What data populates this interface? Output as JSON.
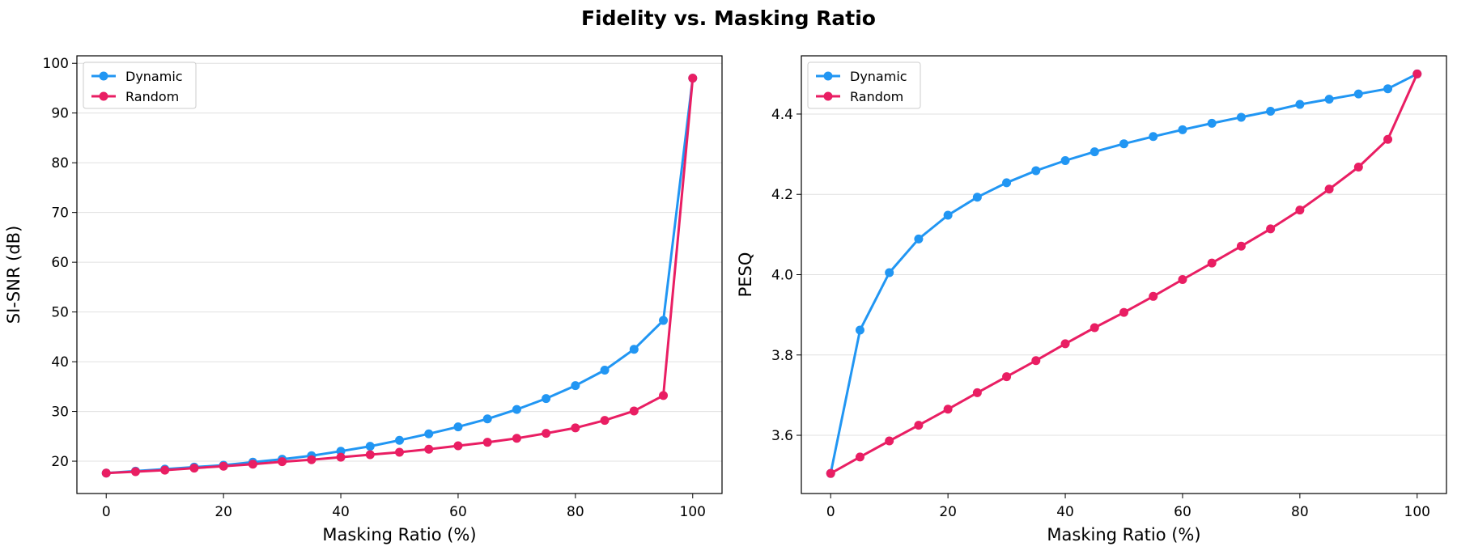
{
  "title": "Fidelity vs. Masking Ratio",
  "colors": {
    "dynamic": "#2196F3",
    "random": "#E91E63",
    "grid": "#e0e0e0"
  },
  "chart_data": [
    {
      "type": "line",
      "xlabel": "Masking Ratio (%)",
      "ylabel": "SI-SNR (dB)",
      "xlim": [
        -5,
        105
      ],
      "ylim": [
        13.5,
        101.5
      ],
      "xticks": [
        0,
        20,
        40,
        60,
        80,
        100
      ],
      "yticks": [
        20,
        30,
        40,
        50,
        60,
        70,
        80,
        90,
        100
      ],
      "grid": "horizontal",
      "legend": "top-left",
      "x": [
        0,
        5,
        10,
        15,
        20,
        25,
        30,
        35,
        40,
        45,
        50,
        55,
        60,
        65,
        70,
        75,
        80,
        85,
        90,
        95,
        100
      ],
      "series": [
        {
          "name": "Dynamic",
          "color": "#2196F3",
          "values": [
            17.6,
            18.0,
            18.4,
            18.8,
            19.2,
            19.8,
            20.4,
            21.1,
            22.0,
            23.0,
            24.2,
            25.5,
            26.9,
            28.5,
            30.4,
            32.6,
            35.2,
            38.3,
            42.5,
            48.3,
            97.0
          ]
        },
        {
          "name": "Random",
          "color": "#E91E63",
          "values": [
            17.6,
            17.9,
            18.2,
            18.6,
            19.0,
            19.4,
            19.9,
            20.3,
            20.8,
            21.3,
            21.8,
            22.4,
            23.1,
            23.8,
            24.6,
            25.6,
            26.7,
            28.2,
            30.1,
            33.2,
            97.0
          ]
        }
      ]
    },
    {
      "type": "line",
      "xlabel": "Masking Ratio (%)",
      "ylabel": "PESQ",
      "xlim": [
        -5,
        105
      ],
      "ylim": [
        3.455,
        4.545
      ],
      "xticks": [
        0,
        20,
        40,
        60,
        80,
        100
      ],
      "yticks": [
        3.6,
        3.8,
        4.0,
        4.2,
        4.4
      ],
      "grid": "horizontal",
      "legend": "top-left",
      "x": [
        0,
        5,
        10,
        15,
        20,
        25,
        30,
        35,
        40,
        45,
        50,
        55,
        60,
        65,
        70,
        75,
        80,
        85,
        90,
        95,
        100
      ],
      "series": [
        {
          "name": "Dynamic",
          "color": "#2196F3",
          "values": [
            3.505,
            3.862,
            4.005,
            4.089,
            4.148,
            4.193,
            4.229,
            4.259,
            4.284,
            4.306,
            4.326,
            4.344,
            4.361,
            4.377,
            4.392,
            4.407,
            4.424,
            4.437,
            4.45,
            4.463,
            4.5
          ]
        },
        {
          "name": "Random",
          "color": "#E91E63",
          "values": [
            3.505,
            3.546,
            3.586,
            3.625,
            3.665,
            3.706,
            3.746,
            3.786,
            3.828,
            3.868,
            3.906,
            3.946,
            3.988,
            4.029,
            4.071,
            4.114,
            4.161,
            4.213,
            4.268,
            4.337,
            4.5
          ]
        }
      ]
    }
  ]
}
